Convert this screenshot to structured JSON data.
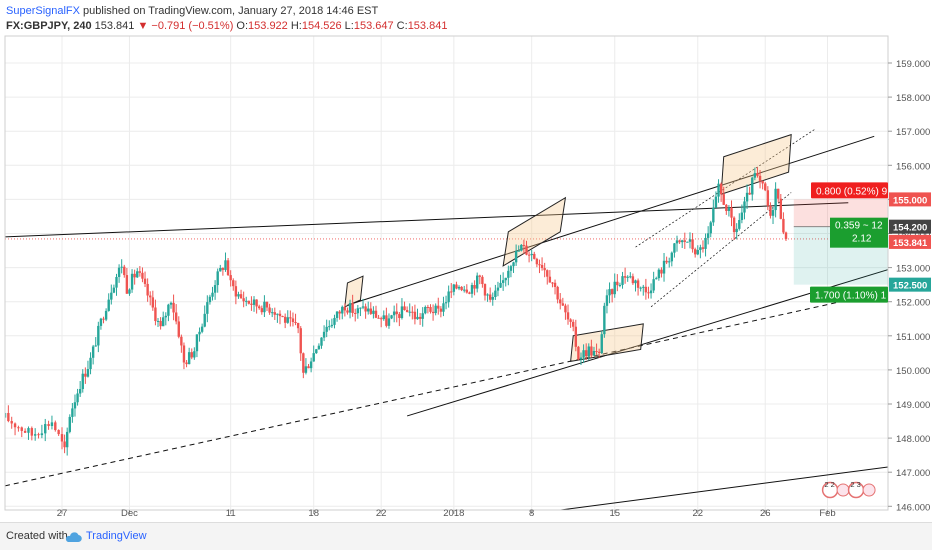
{
  "header": {
    "publisher": "SuperSignalFX",
    "published_text": " published on TradingView.com, January 27, 2018 14:46 EST",
    "symbol": "FX:GBPJPY, 240",
    "last": " 153.841 ",
    "change": "▼ −0.791 (−0.51%)",
    "o_label": " O:",
    "o_val": "153.922",
    "h_label": " H:",
    "h_val": "154.526",
    "l_label": " L:",
    "l_val": "153.647",
    "c_label": " C:",
    "c_val": "153.841"
  },
  "footer": {
    "created_with": "Created with",
    "brand": "TradingView"
  },
  "colors": {
    "up": "#26a69a",
    "down": "#ef5350",
    "axis_text": "#555555",
    "grid": "#ececec"
  },
  "chart_data": {
    "type": "candlestick",
    "ylim": [
      144.8,
      159.6
    ],
    "y_ticks": [
      145.0,
      146.0,
      147.0,
      148.0,
      149.0,
      150.0,
      151.0,
      152.0,
      153.0,
      154.0,
      155.0,
      156.0,
      157.0,
      158.0,
      159.0
    ],
    "x_ticks": [
      {
        "label": "27",
        "bar": 17
      },
      {
        "label": "Dec",
        "bar": 43
      },
      {
        "label": "11",
        "bar": 82
      },
      {
        "label": "18",
        "bar": 114
      },
      {
        "label": "22",
        "bar": 140
      },
      {
        "label": "2018",
        "bar": 168
      },
      {
        "label": "8",
        "bar": 198
      },
      {
        "label": "15",
        "bar": 230
      },
      {
        "label": "22",
        "bar": 262
      },
      {
        "label": "26",
        "bar": 288
      },
      {
        "label": "Feb",
        "bar": 312
      }
    ],
    "price_labels": [
      {
        "text": "155.000",
        "value": 155.0,
        "color": "#ef5350"
      },
      {
        "text": "154.200",
        "value": 154.2,
        "color": "#444444"
      },
      {
        "text": "153.841",
        "value": 153.841,
        "color": "#ef5350"
      },
      {
        "text": "152.500",
        "value": 152.5,
        "color": "#26a69a"
      }
    ],
    "annotations": {
      "stop": "0.800 (0.52%) 9",
      "entry": "0.359 ~ 12",
      "ratio": "2.12",
      "target": "1.700 (1.10%) 1"
    },
    "current_price": 153.841,
    "waypoints": [
      [
        0,
        148.6
      ],
      [
        8,
        148.1
      ],
      [
        14,
        148.5
      ],
      [
        18,
        147.6
      ],
      [
        20,
        148.7
      ],
      [
        24,
        149.6
      ],
      [
        28,
        150.3
      ],
      [
        32,
        151.4
      ],
      [
        36,
        152.4
      ],
      [
        40,
        153.1
      ],
      [
        42,
        152.4
      ],
      [
        46,
        152.9
      ],
      [
        50,
        152.2
      ],
      [
        55,
        151.2
      ],
      [
        59,
        152.1
      ],
      [
        62,
        151.1
      ],
      [
        64,
        150.2
      ],
      [
        68,
        150.6
      ],
      [
        72,
        151.7
      ],
      [
        76,
        152.6
      ],
      [
        80,
        153.2
      ],
      [
        82,
        152.5
      ],
      [
        86,
        152.1
      ],
      [
        92,
        151.9
      ],
      [
        98,
        151.8
      ],
      [
        104,
        151.4
      ],
      [
        108,
        151.2
      ],
      [
        110,
        149.9
      ],
      [
        114,
        150.5
      ],
      [
        118,
        151.2
      ],
      [
        122,
        151.5
      ],
      [
        126,
        151.9
      ],
      [
        130,
        151.7
      ],
      [
        134,
        151.8
      ],
      [
        138,
        151.6
      ],
      [
        142,
        151.4
      ],
      [
        146,
        151.6
      ],
      [
        150,
        151.8
      ],
      [
        154,
        151.5
      ],
      [
        158,
        151.8
      ],
      [
        162,
        151.7
      ],
      [
        166,
        152.2
      ],
      [
        170,
        152.5
      ],
      [
        174,
        152.4
      ],
      [
        178,
        152.7
      ],
      [
        182,
        152.0
      ],
      [
        186,
        152.4
      ],
      [
        190,
        153.2
      ],
      [
        194,
        153.6
      ],
      [
        198,
        153.4
      ],
      [
        202,
        153.1
      ],
      [
        206,
        152.6
      ],
      [
        210,
        151.8
      ],
      [
        214,
        151.1
      ],
      [
        216,
        150.4
      ],
      [
        220,
        150.6
      ],
      [
        224,
        150.4
      ],
      [
        226,
        151.9
      ],
      [
        230,
        152.5
      ],
      [
        234,
        152.8
      ],
      [
        238,
        152.6
      ],
      [
        242,
        152.3
      ],
      [
        246,
        152.7
      ],
      [
        250,
        153.2
      ],
      [
        254,
        153.7
      ],
      [
        258,
        153.8
      ],
      [
        262,
        153.4
      ],
      [
        266,
        153.9
      ],
      [
        270,
        155.3
      ],
      [
        274,
        154.6
      ],
      [
        276,
        154.0
      ],
      [
        280,
        154.8
      ],
      [
        284,
        155.7
      ],
      [
        288,
        155.2
      ],
      [
        290,
        154.4
      ],
      [
        292,
        155.3
      ],
      [
        295,
        154.2
      ],
      [
        296,
        153.84
      ]
    ],
    "lines": [
      {
        "style": "solid",
        "p1": [
          0,
          153.9
        ],
        "p2": [
          320,
          154.9
        ]
      },
      {
        "style": "solid",
        "p1": [
          127,
          151.9
        ],
        "p2": [
          330,
          156.85
        ]
      },
      {
        "style": "solid",
        "p1": [
          150,
          148.65
        ],
        "p2": [
          340,
          153.05
        ]
      },
      {
        "style": "dashed",
        "p1": [
          0,
          146.6
        ],
        "p2": [
          320,
          152.05
        ]
      },
      {
        "style": "solid",
        "p1": [
          90,
          144.7
        ],
        "p2": [
          340,
          147.2
        ]
      },
      {
        "style": "dotted",
        "p1": [
          238,
          153.6
        ],
        "p2": [
          307,
          157.05
        ]
      },
      {
        "style": "dotted",
        "p1": [
          244,
          151.85
        ],
        "p2": [
          298,
          155.2
        ]
      }
    ],
    "boxes": [
      [
        [
          127,
          152.55
        ],
        [
          133,
          152.75
        ],
        [
          132,
          152.05
        ],
        [
          126,
          151.85
        ]
      ],
      [
        [
          189,
          154.05
        ],
        [
          211,
          155.05
        ],
        [
          209,
          154.05
        ],
        [
          187,
          153.05
        ]
      ],
      [
        [
          214,
          151.0
        ],
        [
          241,
          151.35
        ],
        [
          240,
          150.6
        ],
        [
          213,
          150.25
        ]
      ],
      [
        [
          272,
          156.25
        ],
        [
          298,
          156.9
        ],
        [
          297,
          155.8
        ],
        [
          271,
          155.15
        ]
      ]
    ],
    "position_tool": {
      "bar_start": 299,
      "bar_end": 323,
      "entry": 154.2,
      "stop": 155.0,
      "target": 152.5
    },
    "badges": [
      {
        "text": "2 2",
        "bar": 313
      },
      {
        "text": "2 3",
        "bar": 323
      }
    ]
  }
}
